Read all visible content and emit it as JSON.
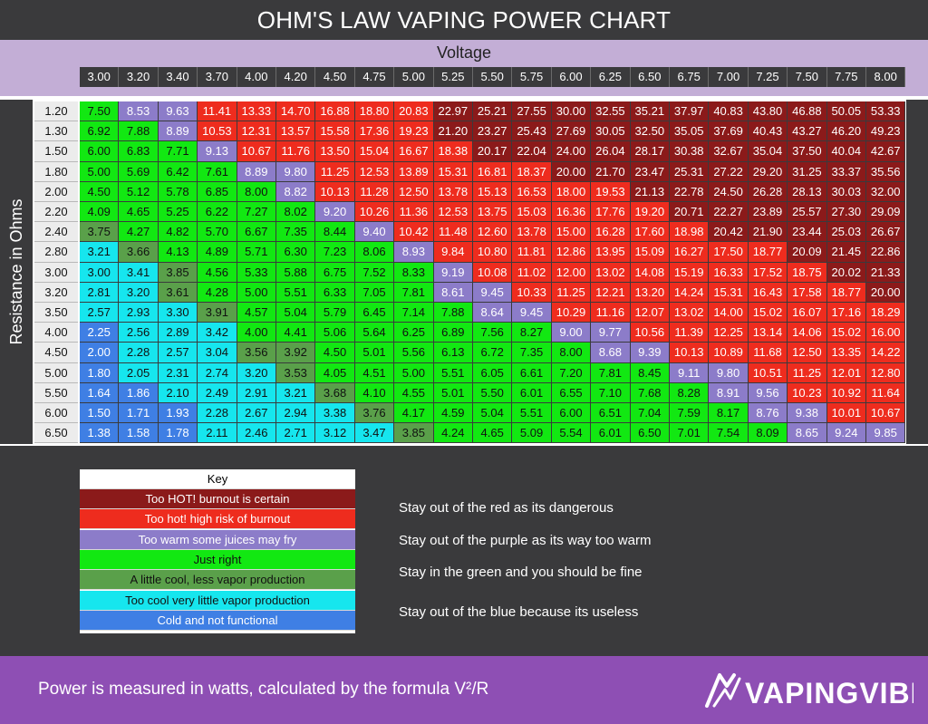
{
  "title": "OHM'S LAW VAPING POWER CHART",
  "x_axis_title": "Voltage",
  "y_axis_title": "Resistance in Ohms",
  "voltages": [
    "3.00",
    "3.20",
    "3.40",
    "3.70",
    "4.00",
    "4.20",
    "4.50",
    "4.75",
    "5.00",
    "5.25",
    "5.50",
    "5.75",
    "6.00",
    "6.25",
    "6.50",
    "6.75",
    "7.00",
    "7.25",
    "7.50",
    "7.75",
    "8.00"
  ],
  "resistances": [
    "1.20",
    "1.30",
    "1.50",
    "1.80",
    "2.00",
    "2.20",
    "2.40",
    "2.80",
    "3.00",
    "3.20",
    "3.50",
    "4.00",
    "4.50",
    "5.00",
    "5.50",
    "6.00",
    "6.50"
  ],
  "colors": {
    "dark_red": "#8b1a1a",
    "red": "#ee2c1e",
    "purple": "#8c7cc9",
    "green": "#12e812",
    "olive": "#5aa04a",
    "cyan": "#16e6ee",
    "blue": "#3f7fe4"
  },
  "chart_data": {
    "type": "heatmap",
    "title": "OHM'S LAW VAPING POWER CHART",
    "xlabel": "Voltage",
    "ylabel": "Resistance in Ohms",
    "x": [
      "3.00",
      "3.20",
      "3.40",
      "3.70",
      "4.00",
      "4.20",
      "4.50",
      "4.75",
      "5.00",
      "5.25",
      "5.50",
      "5.75",
      "6.00",
      "6.25",
      "6.50",
      "6.75",
      "7.00",
      "7.25",
      "7.50",
      "7.75",
      "8.00"
    ],
    "y": [
      "1.20",
      "1.30",
      "1.50",
      "1.80",
      "2.00",
      "2.20",
      "2.40",
      "2.80",
      "3.00",
      "3.20",
      "3.50",
      "4.00",
      "4.50",
      "5.00",
      "5.50",
      "6.00",
      "6.50"
    ],
    "values": [
      [
        "7.50",
        "8.53",
        "9.63",
        "11.41",
        "13.33",
        "14.70",
        "16.88",
        "18.80",
        "20.83",
        "22.97",
        "25.21",
        "27.55",
        "30.00",
        "32.55",
        "35.21",
        "37.97",
        "40.83",
        "43.80",
        "46.88",
        "50.05",
        "53.33"
      ],
      [
        "6.92",
        "7.88",
        "8.89",
        "10.53",
        "12.31",
        "13.57",
        "15.58",
        "17.36",
        "19.23",
        "21.20",
        "23.27",
        "25.43",
        "27.69",
        "30.05",
        "32.50",
        "35.05",
        "37.69",
        "40.43",
        "43.27",
        "46.20",
        "49.23"
      ],
      [
        "6.00",
        "6.83",
        "7.71",
        "9.13",
        "10.67",
        "11.76",
        "13.50",
        "15.04",
        "16.67",
        "18.38",
        "20.17",
        "22.04",
        "24.00",
        "26.04",
        "28.17",
        "30.38",
        "32.67",
        "35.04",
        "37.50",
        "40.04",
        "42.67"
      ],
      [
        "5.00",
        "5.69",
        "6.42",
        "7.61",
        "8.89",
        "9.80",
        "11.25",
        "12.53",
        "13.89",
        "15.31",
        "16.81",
        "18.37",
        "20.00",
        "21.70",
        "23.47",
        "25.31",
        "27.22",
        "29.20",
        "31.25",
        "33.37",
        "35.56"
      ],
      [
        "4.50",
        "5.12",
        "5.78",
        "6.85",
        "8.00",
        "8.82",
        "10.13",
        "11.28",
        "12.50",
        "13.78",
        "15.13",
        "16.53",
        "18.00",
        "19.53",
        "21.13",
        "22.78",
        "24.50",
        "26.28",
        "28.13",
        "30.03",
        "32.00"
      ],
      [
        "4.09",
        "4.65",
        "5.25",
        "6.22",
        "7.27",
        "8.02",
        "9.20",
        "10.26",
        "11.36",
        "12.53",
        "13.75",
        "15.03",
        "16.36",
        "17.76",
        "19.20",
        "20.71",
        "22.27",
        "23.89",
        "25.57",
        "27.30",
        "29.09"
      ],
      [
        "3.75",
        "4.27",
        "4.82",
        "5.70",
        "6.67",
        "7.35",
        "8.44",
        "9.40",
        "10.42",
        "11.48",
        "12.60",
        "13.78",
        "15.00",
        "16.28",
        "17.60",
        "18.98",
        "20.42",
        "21.90",
        "23.44",
        "25.03",
        "26.67"
      ],
      [
        "3.21",
        "3.66",
        "4.13",
        "4.89",
        "5.71",
        "6.30",
        "7.23",
        "8.06",
        "8.93",
        "9.84",
        "10.80",
        "11.81",
        "12.86",
        "13.95",
        "15.09",
        "16.27",
        "17.50",
        "18.77",
        "20.09",
        "21.45",
        "22.86"
      ],
      [
        "3.00",
        "3.41",
        "3.85",
        "4.56",
        "5.33",
        "5.88",
        "6.75",
        "7.52",
        "8.33",
        "9.19",
        "10.08",
        "11.02",
        "12.00",
        "13.02",
        "14.08",
        "15.19",
        "16.33",
        "17.52",
        "18.75",
        "20.02",
        "21.33"
      ],
      [
        "2.81",
        "3.20",
        "3.61",
        "4.28",
        "5.00",
        "5.51",
        "6.33",
        "7.05",
        "7.81",
        "8.61",
        "9.45",
        "10.33",
        "11.25",
        "12.21",
        "13.20",
        "14.24",
        "15.31",
        "16.43",
        "17.58",
        "18.77",
        "20.00"
      ],
      [
        "2.57",
        "2.93",
        "3.30",
        "3.91",
        "4.57",
        "5.04",
        "5.79",
        "6.45",
        "7.14",
        "7.88",
        "8.64",
        "9.45",
        "10.29",
        "11.16",
        "12.07",
        "13.02",
        "14.00",
        "15.02",
        "16.07",
        "17.16",
        "18.29"
      ],
      [
        "2.25",
        "2.56",
        "2.89",
        "3.42",
        "4.00",
        "4.41",
        "5.06",
        "5.64",
        "6.25",
        "6.89",
        "7.56",
        "8.27",
        "9.00",
        "9.77",
        "10.56",
        "11.39",
        "12.25",
        "13.14",
        "14.06",
        "15.02",
        "16.00"
      ],
      [
        "2.00",
        "2.28",
        "2.57",
        "3.04",
        "3.56",
        "3.92",
        "4.50",
        "5.01",
        "5.56",
        "6.13",
        "6.72",
        "7.35",
        "8.00",
        "8.68",
        "9.39",
        "10.13",
        "10.89",
        "11.68",
        "12.50",
        "13.35",
        "14.22"
      ],
      [
        "1.80",
        "2.05",
        "2.31",
        "2.74",
        "3.20",
        "3.53",
        "4.05",
        "4.51",
        "5.00",
        "5.51",
        "6.05",
        "6.61",
        "7.20",
        "7.81",
        "8.45",
        "9.11",
        "9.80",
        "10.51",
        "11.25",
        "12.01",
        "12.80"
      ],
      [
        "1.64",
        "1.86",
        "2.10",
        "2.49",
        "2.91",
        "3.21",
        "3.68",
        "4.10",
        "4.55",
        "5.01",
        "5.50",
        "6.01",
        "6.55",
        "7.10",
        "7.68",
        "8.28",
        "8.91",
        "9.56",
        "10.23",
        "10.92",
        "11.64"
      ],
      [
        "1.50",
        "1.71",
        "1.93",
        "2.28",
        "2.67",
        "2.94",
        "3.38",
        "3.76",
        "4.17",
        "4.59",
        "5.04",
        "5.51",
        "6.00",
        "6.51",
        "7.04",
        "7.59",
        "8.17",
        "8.76",
        "9.38",
        "10.01",
        "10.67"
      ],
      [
        "1.38",
        "1.58",
        "1.78",
        "2.11",
        "2.46",
        "2.71",
        "3.12",
        "3.47",
        "3.85",
        "4.24",
        "4.65",
        "5.09",
        "5.54",
        "6.01",
        "6.50",
        "7.01",
        "7.54",
        "8.09",
        "8.65",
        "9.24",
        "9.85"
      ]
    ],
    "categories": [
      [
        "green",
        "purple",
        "purple",
        "red",
        "red",
        "red",
        "red",
        "red",
        "red",
        "dark_red",
        "dark_red",
        "dark_red",
        "dark_red",
        "dark_red",
        "dark_red",
        "dark_red",
        "dark_red",
        "dark_red",
        "dark_red",
        "dark_red",
        "dark_red"
      ],
      [
        "green",
        "green",
        "purple",
        "red",
        "red",
        "red",
        "red",
        "red",
        "red",
        "dark_red",
        "dark_red",
        "dark_red",
        "dark_red",
        "dark_red",
        "dark_red",
        "dark_red",
        "dark_red",
        "dark_red",
        "dark_red",
        "dark_red",
        "dark_red"
      ],
      [
        "green",
        "green",
        "green",
        "purple",
        "red",
        "red",
        "red",
        "red",
        "red",
        "red",
        "dark_red",
        "dark_red",
        "dark_red",
        "dark_red",
        "dark_red",
        "dark_red",
        "dark_red",
        "dark_red",
        "dark_red",
        "dark_red",
        "dark_red"
      ],
      [
        "green",
        "green",
        "green",
        "green",
        "purple",
        "purple",
        "red",
        "red",
        "red",
        "red",
        "red",
        "red",
        "dark_red",
        "dark_red",
        "dark_red",
        "dark_red",
        "dark_red",
        "dark_red",
        "dark_red",
        "dark_red",
        "dark_red"
      ],
      [
        "green",
        "green",
        "green",
        "green",
        "green",
        "purple",
        "red",
        "red",
        "red",
        "red",
        "red",
        "red",
        "red",
        "red",
        "dark_red",
        "dark_red",
        "dark_red",
        "dark_red",
        "dark_red",
        "dark_red",
        "dark_red"
      ],
      [
        "green",
        "green",
        "green",
        "green",
        "green",
        "green",
        "purple",
        "red",
        "red",
        "red",
        "red",
        "red",
        "red",
        "red",
        "red",
        "dark_red",
        "dark_red",
        "dark_red",
        "dark_red",
        "dark_red",
        "dark_red"
      ],
      [
        "olive",
        "green",
        "green",
        "green",
        "green",
        "green",
        "green",
        "purple",
        "red",
        "red",
        "red",
        "red",
        "red",
        "red",
        "red",
        "red",
        "dark_red",
        "dark_red",
        "dark_red",
        "dark_red",
        "dark_red"
      ],
      [
        "cyan",
        "olive",
        "green",
        "green",
        "green",
        "green",
        "green",
        "green",
        "purple",
        "red",
        "red",
        "red",
        "red",
        "red",
        "red",
        "red",
        "red",
        "red",
        "dark_red",
        "dark_red",
        "dark_red"
      ],
      [
        "cyan",
        "cyan",
        "olive",
        "green",
        "green",
        "green",
        "green",
        "green",
        "green",
        "purple",
        "red",
        "red",
        "red",
        "red",
        "red",
        "red",
        "red",
        "red",
        "red",
        "dark_red",
        "dark_red"
      ],
      [
        "cyan",
        "cyan",
        "olive",
        "green",
        "green",
        "green",
        "green",
        "green",
        "green",
        "purple",
        "purple",
        "red",
        "red",
        "red",
        "red",
        "red",
        "red",
        "red",
        "red",
        "red",
        "dark_red"
      ],
      [
        "cyan",
        "cyan",
        "cyan",
        "olive",
        "green",
        "green",
        "green",
        "green",
        "green",
        "green",
        "purple",
        "purple",
        "red",
        "red",
        "red",
        "red",
        "red",
        "red",
        "red",
        "red",
        "red"
      ],
      [
        "blue",
        "cyan",
        "cyan",
        "cyan",
        "green",
        "green",
        "green",
        "green",
        "green",
        "green",
        "green",
        "green",
        "purple",
        "purple",
        "red",
        "red",
        "red",
        "red",
        "red",
        "red",
        "red"
      ],
      [
        "blue",
        "cyan",
        "cyan",
        "cyan",
        "olive",
        "olive",
        "green",
        "green",
        "green",
        "green",
        "green",
        "green",
        "green",
        "purple",
        "purple",
        "red",
        "red",
        "red",
        "red",
        "red",
        "red"
      ],
      [
        "blue",
        "cyan",
        "cyan",
        "cyan",
        "cyan",
        "olive",
        "green",
        "green",
        "green",
        "green",
        "green",
        "green",
        "green",
        "green",
        "green",
        "purple",
        "purple",
        "red",
        "red",
        "red",
        "red"
      ],
      [
        "blue",
        "blue",
        "cyan",
        "cyan",
        "cyan",
        "cyan",
        "olive",
        "green",
        "green",
        "green",
        "green",
        "green",
        "green",
        "green",
        "green",
        "green",
        "purple",
        "purple",
        "red",
        "red",
        "red"
      ],
      [
        "blue",
        "blue",
        "blue",
        "cyan",
        "cyan",
        "cyan",
        "cyan",
        "olive",
        "green",
        "green",
        "green",
        "green",
        "green",
        "green",
        "green",
        "green",
        "green",
        "purple",
        "purple",
        "red",
        "red"
      ],
      [
        "blue",
        "blue",
        "blue",
        "cyan",
        "cyan",
        "cyan",
        "cyan",
        "cyan",
        "olive",
        "green",
        "green",
        "green",
        "green",
        "green",
        "green",
        "green",
        "green",
        "green",
        "purple",
        "purple",
        "purple"
      ]
    ],
    "legend": [
      {
        "label": "Too HOT! burnout is certain",
        "color": "dark_red"
      },
      {
        "label": "Too hot! high risk of burnout",
        "color": "red"
      },
      {
        "label": "Too warm some juices may fry",
        "color": "purple"
      },
      {
        "label": "Just right",
        "color": "green"
      },
      {
        "label": "A little cool, less vapor production",
        "color": "olive"
      },
      {
        "label": "Too cool very little vapor production",
        "color": "cyan"
      },
      {
        "label": "Cold and not functional",
        "color": "blue"
      }
    ]
  },
  "key": {
    "title": "Key",
    "items": [
      {
        "label": "Too HOT! burnout is certain",
        "color": "dark_red"
      },
      {
        "label": "Too hot! high risk of burnout",
        "color": "red"
      },
      {
        "label": "Too warm some juices may fry",
        "color": "purple"
      },
      {
        "label": "Just right",
        "color": "green"
      },
      {
        "label": "A little cool, less vapor production",
        "color": "olive"
      },
      {
        "label": "Too cool very little vapor production",
        "color": "cyan"
      },
      {
        "label": "Cold and not functional",
        "color": "blue"
      }
    ]
  },
  "notes": [
    "Stay out of the red as its dangerous",
    "Stay out of the purple as its way too warm",
    "Stay in the green and you should be fine",
    "Stay out of the blue because its useless"
  ],
  "footer": {
    "text": "Power is measured in watts, calculated by the formula V²/R",
    "logo_text": "VAPINGVIBE"
  }
}
